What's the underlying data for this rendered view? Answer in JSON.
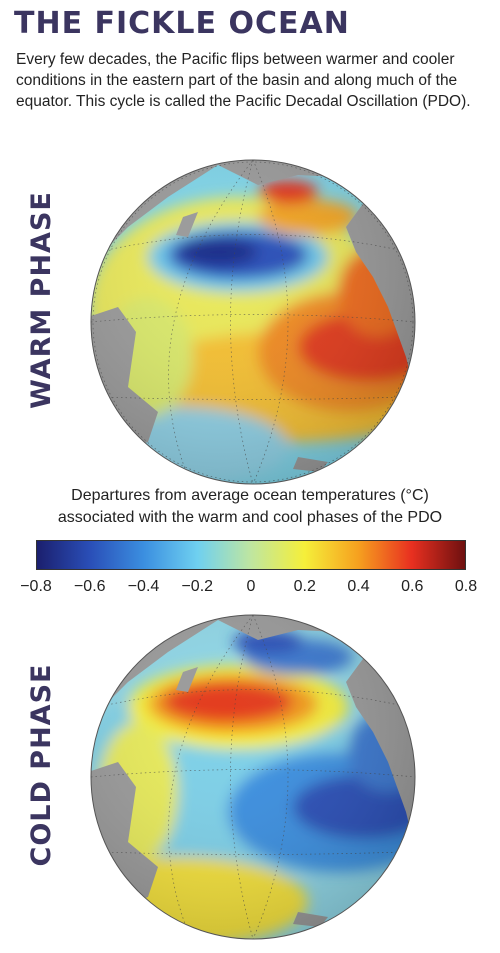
{
  "title": "THE FICKLE OCEAN",
  "intro": "Every few decades, the Pacific flips between warmer and cooler conditions in the eastern part of the basin and along much of the equator. This cycle is called the Pacific Decadal Oscillation (PDO).",
  "panels": {
    "warm_label": "WARM PHASE",
    "cold_label": "COLD PHASE"
  },
  "legend": {
    "line1": "Departures from average ocean temperatures (°C)",
    "line2": "associated with the warm and cool phases of the PDO",
    "min": -0.8,
    "max": 0.8,
    "ticks": [
      "−0.8",
      "−0.6",
      "−0.4",
      "−0.2",
      "0",
      "0.2",
      "0.4",
      "0.6",
      "0.8"
    ],
    "colors": [
      "#1b1f6e",
      "#2a4fb8",
      "#3b8fe0",
      "#6fd0f0",
      "#bfe6a0",
      "#f5ef3a",
      "#f6a11f",
      "#e83020",
      "#6e1010"
    ]
  },
  "colors": {
    "heading": "#3b3560",
    "land": "#9a9a9a",
    "warm_anomaly": "#e33b1e",
    "cold_anomaly": "#2a4fb8"
  }
}
